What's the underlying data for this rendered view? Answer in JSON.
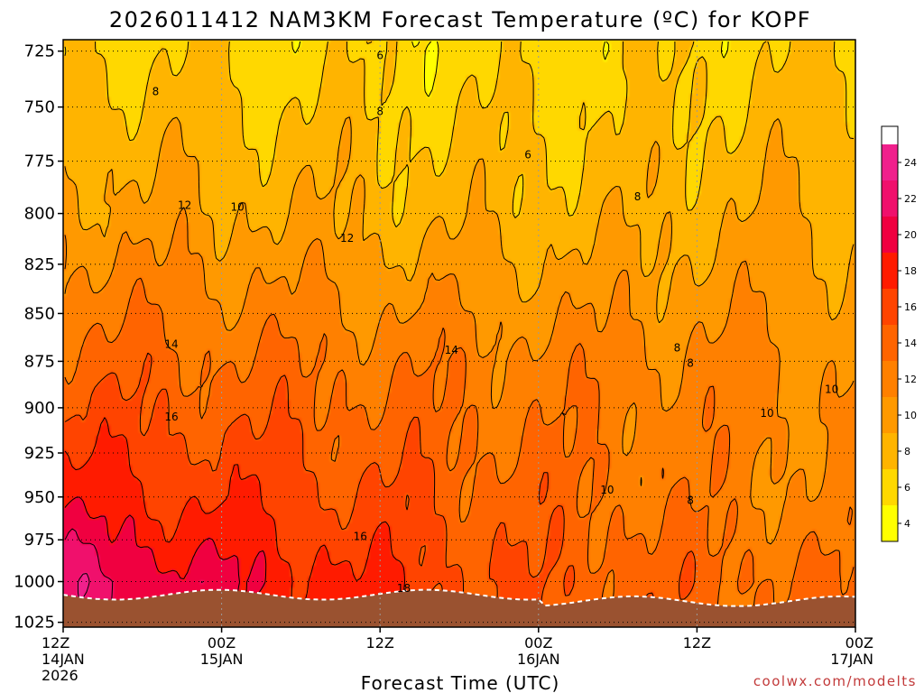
{
  "colors": {
    "ground": "#9a5230",
    "contour_line": "#000000",
    "temperature_colors": {
      "4": "#ffff00",
      "6": "#ffd800",
      "8": "#ffb400",
      "10": "#ff9900",
      "12": "#ff8000",
      "14": "#ff6400",
      "16": "#ff4400",
      "18": "#ff1b00",
      "20": "#f00040",
      "22": "#f0106c",
      "24": "#f0208c"
    }
  },
  "footer": {
    "credit": "coolwx.com/modelts"
  },
  "chart_data": {
    "type": "heatmap",
    "title": "2026011412 NAM3KM Forecast Temperature (ºC) for KOPF",
    "xlabel": "Forecast Time (UTC)",
    "ylabel": "",
    "x_ticks": [
      {
        "hour": 0,
        "lines": [
          "12Z",
          "14JAN",
          "2026"
        ]
      },
      {
        "hour": 12,
        "lines": [
          "00Z",
          "15JAN"
        ]
      },
      {
        "hour": 24,
        "lines": [
          "12Z"
        ]
      },
      {
        "hour": 36,
        "lines": [
          "00Z",
          "16JAN"
        ]
      },
      {
        "hour": 48,
        "lines": [
          "12Z"
        ]
      },
      {
        "hour": 60,
        "lines": [
          "00Z",
          "17JAN"
        ]
      }
    ],
    "xlim_hours": [
      0,
      60
    ],
    "y_ticks": [
      725,
      750,
      775,
      800,
      825,
      850,
      875,
      900,
      925,
      950,
      975,
      1000,
      1025
    ],
    "ylim": [
      720,
      1028
    ],
    "y_scale": "log",
    "colorbar": {
      "ticks": [
        4,
        6,
        8,
        10,
        12,
        14,
        16,
        18,
        20,
        22,
        24
      ],
      "range": [
        3,
        26
      ]
    },
    "contour_labels": [
      {
        "value": "6",
        "hour": 24,
        "p": 727
      },
      {
        "value": "8",
        "hour": 7,
        "p": 743
      },
      {
        "value": "8",
        "hour": 24,
        "p": 752
      },
      {
        "value": "6",
        "hour": 35.2,
        "p": 772
      },
      {
        "value": "8",
        "hour": 43.5,
        "p": 792
      },
      {
        "value": "12",
        "hour": 9.2,
        "p": 796
      },
      {
        "value": "10",
        "hour": 13.2,
        "p": 797
      },
      {
        "value": "12",
        "hour": 21.5,
        "p": 812
      },
      {
        "value": "14",
        "hour": 8.2,
        "p": 866
      },
      {
        "value": "14",
        "hour": 29.4,
        "p": 869
      },
      {
        "value": "8",
        "hour": 46.5,
        "p": 868
      },
      {
        "value": "8",
        "hour": 47.5,
        "p": 876
      },
      {
        "value": "10",
        "hour": 53.3,
        "p": 903
      },
      {
        "value": "10",
        "hour": 58.2,
        "p": 890
      },
      {
        "value": "16",
        "hour": 8.2,
        "p": 905
      },
      {
        "value": "10",
        "hour": 41.2,
        "p": 946
      },
      {
        "value": "8",
        "hour": 47.5,
        "p": 952
      },
      {
        "value": "16",
        "hour": 22.5,
        "p": 973
      },
      {
        "value": "18",
        "hour": 25.8,
        "p": 1004
      }
    ],
    "temperature_by_pressure": [
      {
        "p": 725,
        "t_start": 7,
        "t_mid": 6,
        "t_end": 7
      },
      {
        "p": 800,
        "t_start": 10,
        "t_mid": 8,
        "t_end": 9
      },
      {
        "p": 875,
        "t_start": 14,
        "t_mid": 12,
        "t_end": 11
      },
      {
        "p": 950,
        "t_start": 18,
        "t_mid": 14,
        "t_end": 11
      },
      {
        "p": 1000,
        "t_start": 22,
        "t_mid": 15,
        "t_end": 13
      }
    ]
  }
}
